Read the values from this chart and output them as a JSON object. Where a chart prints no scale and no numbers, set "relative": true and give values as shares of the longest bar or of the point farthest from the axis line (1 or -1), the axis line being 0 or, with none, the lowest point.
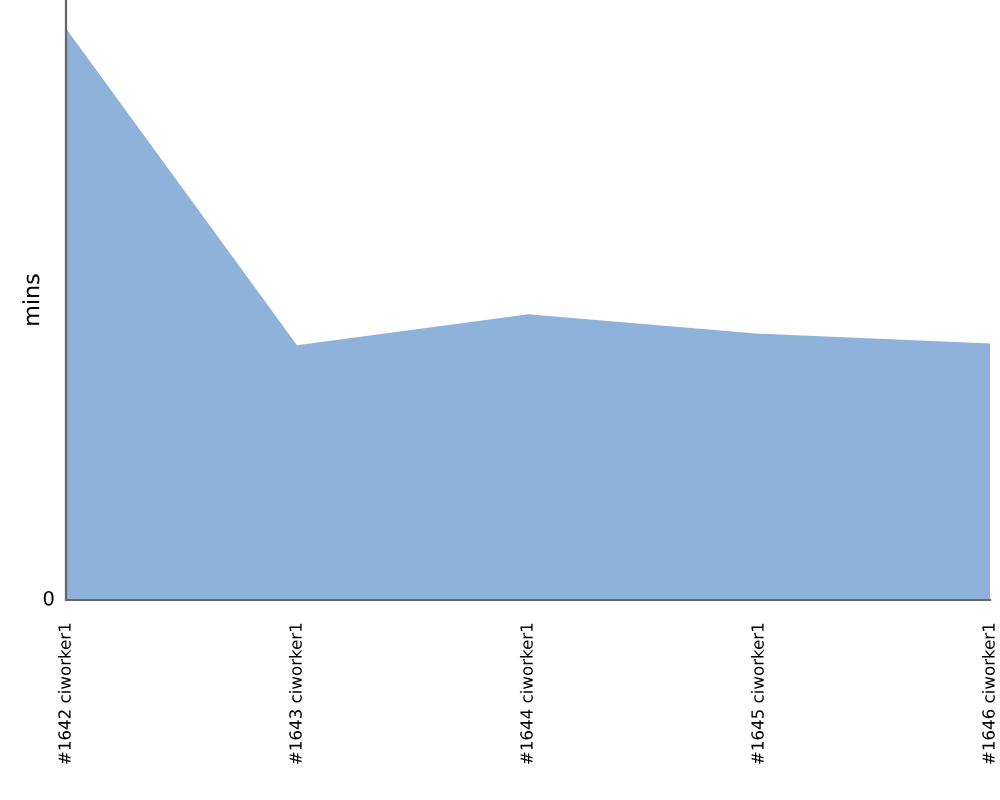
{
  "chart_data": {
    "type": "area",
    "ylabel": "mins",
    "relative": true,
    "color": "#8fb2da",
    "categories": [
      "#1642 ciworker1",
      "#1643 ciworker1",
      "#1644 ciworker1",
      "#1645 ciworker1",
      "#1646 ciworker1"
    ],
    "values": [
      1,
      0.446,
      0.5,
      0.466,
      0.449
    ],
    "annotations": [
      "0"
    ],
    "legend": false,
    "grid": false
  }
}
